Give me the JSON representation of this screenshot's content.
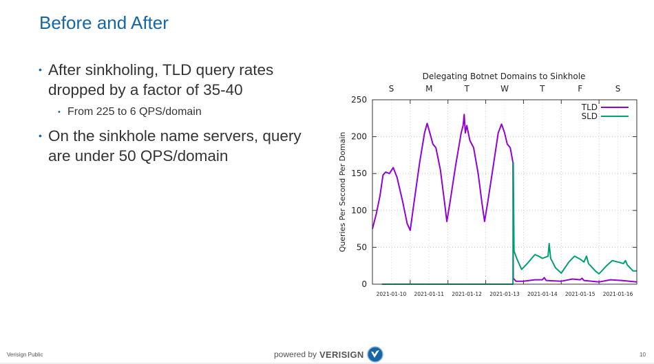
{
  "slide": {
    "title": "Before and After",
    "bullets": [
      {
        "text": "After sinkholing, TLD query rates dropped by a factor of 35-40",
        "level": 1
      },
      {
        "text": "From  225 to 6 QPS/domain",
        "level": 2
      },
      {
        "text": "On the sinkhole name servers, query are under 50 QPS/domain",
        "level": 1
      }
    ],
    "bullet_glyph": "•",
    "footer": {
      "left": "Verisign Public",
      "powered_by": "powered by",
      "brand": "VERISIGN",
      "logo_icon": "verisign-check-logo",
      "page_number": "10"
    },
    "colors": {
      "title": "#1466a8",
      "text": "#333333",
      "tld": "#9400d3",
      "sld": "#009e73",
      "logo": "#1466a8"
    }
  },
  "chart_data": {
    "type": "line",
    "title": "Delegating Botnet Domains to Sinkhole",
    "xlabel": "",
    "ylabel": "Queries Per Second Per Domain",
    "ylim": [
      0,
      250
    ],
    "xlim_days": [
      0,
      7
    ],
    "yticks": [
      0,
      50,
      100,
      150,
      200,
      250
    ],
    "xtick_labels": [
      "2021-01-10",
      "2021-01-11",
      "2021-01-12",
      "2021-01-13",
      "2021-01-14",
      "2021-01-15",
      "2021-01-16"
    ],
    "x2tick_labels": [
      "S",
      "M",
      "T",
      "W",
      "T",
      "F",
      "S"
    ],
    "grid": true,
    "legend": "top-right",
    "x_unit": "days since 2021-01-10 00:00",
    "series": [
      {
        "name": "TLD",
        "color": "#9400d3",
        "points": [
          [
            0,
            75
          ],
          [
            0.1,
            95
          ],
          [
            0.2,
            120
          ],
          [
            0.28,
            148
          ],
          [
            0.35,
            152
          ],
          [
            0.45,
            150
          ],
          [
            0.55,
            158
          ],
          [
            0.65,
            145
          ],
          [
            0.8,
            112
          ],
          [
            0.92,
            82
          ],
          [
            1.0,
            73
          ],
          [
            1.1,
            110
          ],
          [
            1.25,
            165
          ],
          [
            1.38,
            205
          ],
          [
            1.45,
            218
          ],
          [
            1.52,
            205
          ],
          [
            1.6,
            190
          ],
          [
            1.68,
            185
          ],
          [
            1.8,
            155
          ],
          [
            1.9,
            115
          ],
          [
            1.97,
            85
          ],
          [
            2.05,
            110
          ],
          [
            2.2,
            160
          ],
          [
            2.35,
            205
          ],
          [
            2.4,
            215
          ],
          [
            2.43,
            230
          ],
          [
            2.46,
            205
          ],
          [
            2.5,
            215
          ],
          [
            2.58,
            195
          ],
          [
            2.68,
            185
          ],
          [
            2.8,
            150
          ],
          [
            2.9,
            110
          ],
          [
            2.97,
            85
          ],
          [
            3.05,
            110
          ],
          [
            3.2,
            160
          ],
          [
            3.33,
            205
          ],
          [
            3.42,
            217
          ],
          [
            3.5,
            205
          ],
          [
            3.57,
            190
          ],
          [
            3.65,
            185
          ],
          [
            3.72,
            165
          ],
          [
            3.73,
            8
          ],
          [
            3.8,
            4
          ],
          [
            4.0,
            4
          ],
          [
            4.3,
            6
          ],
          [
            4.5,
            6
          ],
          [
            4.55,
            9
          ],
          [
            4.6,
            5
          ],
          [
            5.0,
            4
          ],
          [
            5.3,
            7
          ],
          [
            5.5,
            6
          ],
          [
            5.55,
            8
          ],
          [
            5.6,
            5
          ],
          [
            6.0,
            3
          ],
          [
            6.3,
            6
          ],
          [
            6.6,
            5
          ],
          [
            7.0,
            3
          ]
        ]
      },
      {
        "name": "SLD",
        "color": "#009e73",
        "points": [
          [
            0.25,
            0
          ],
          [
            3.72,
            0
          ],
          [
            3.73,
            165
          ],
          [
            3.75,
            45
          ],
          [
            3.82,
            35
          ],
          [
            3.95,
            20
          ],
          [
            4.1,
            28
          ],
          [
            4.3,
            40
          ],
          [
            4.4,
            38
          ],
          [
            4.5,
            35
          ],
          [
            4.65,
            38
          ],
          [
            4.68,
            55
          ],
          [
            4.72,
            35
          ],
          [
            4.85,
            22
          ],
          [
            5.0,
            15
          ],
          [
            5.2,
            30
          ],
          [
            5.35,
            38
          ],
          [
            5.5,
            34
          ],
          [
            5.6,
            30
          ],
          [
            5.67,
            38
          ],
          [
            5.72,
            28
          ],
          [
            5.9,
            18
          ],
          [
            6.0,
            14
          ],
          [
            6.2,
            25
          ],
          [
            6.35,
            32
          ],
          [
            6.5,
            30
          ],
          [
            6.65,
            28
          ],
          [
            6.7,
            32
          ],
          [
            6.75,
            26
          ],
          [
            6.9,
            18
          ],
          [
            7.0,
            18
          ]
        ]
      }
    ]
  }
}
